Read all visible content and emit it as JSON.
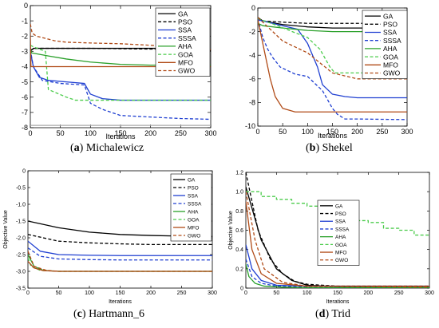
{
  "captions": [
    {
      "letter": "a",
      "name": "Michalewicz"
    },
    {
      "letter": "b",
      "name": "Shekel"
    },
    {
      "letter": "c",
      "name": "Hartmann_6"
    },
    {
      "letter": "d",
      "name": "Trid"
    }
  ],
  "chart_data": [
    {
      "type": "line",
      "title": "",
      "xlabel": "Iterations",
      "ylabel": "",
      "xlim": [
        0,
        300
      ],
      "ylim": [
        -8,
        0
      ],
      "xticks": [
        0,
        50,
        100,
        150,
        200,
        250,
        300
      ],
      "xtick_labels": [
        "0",
        "50",
        "100",
        "150",
        "200",
        "250",
        "300"
      ],
      "yticks": [
        0,
        -1,
        -2,
        -3,
        -4,
        -5,
        -6,
        -7,
        -8
      ],
      "ytick_labels": [
        "0",
        "-1",
        "-2",
        "-3",
        "-4",
        "-5",
        "-6",
        "-7",
        "-8"
      ],
      "grid": false,
      "legend": "top-right",
      "series": [
        {
          "name": "GA",
          "color": "#000000",
          "dash": "solid",
          "x": [
            0,
            5,
            50,
            100,
            150,
            200,
            250,
            300
          ],
          "y": [
            -3.0,
            -2.8,
            -2.8,
            -2.8,
            -2.8,
            -2.8,
            -2.8,
            -2.95
          ]
        },
        {
          "name": "PSO",
          "color": "#000000",
          "dash": "dashed",
          "x": [
            0,
            10,
            50,
            100,
            200,
            300
          ],
          "y": [
            -2.9,
            -2.8,
            -2.8,
            -2.8,
            -2.85,
            -2.85
          ]
        },
        {
          "name": "SSA",
          "color": "#1f3fd1",
          "dash": "solid",
          "x": [
            0,
            5,
            15,
            30,
            60,
            90,
            100,
            120,
            150,
            200,
            300
          ],
          "y": [
            -3.0,
            -4.0,
            -4.7,
            -4.9,
            -5.0,
            -5.1,
            -5.8,
            -6.1,
            -6.2,
            -6.2,
            -6.2
          ]
        },
        {
          "name": "SSSA",
          "color": "#1f3fd1",
          "dash": "dashed",
          "x": [
            0,
            5,
            20,
            50,
            90,
            100,
            120,
            150,
            200,
            250,
            300
          ],
          "y": [
            -2.9,
            -4.0,
            -4.9,
            -5.1,
            -5.2,
            -6.4,
            -6.8,
            -7.2,
            -7.3,
            -7.4,
            -7.45
          ]
        },
        {
          "name": "AHA",
          "color": "#2aa02a",
          "dash": "solid",
          "x": [
            0,
            2,
            30,
            60,
            100,
            150,
            200,
            300
          ],
          "y": [
            -2.8,
            -3.1,
            -3.3,
            -3.5,
            -3.7,
            -3.85,
            -3.9,
            -3.9
          ]
        },
        {
          "name": "GOA",
          "color": "#4ccc4c",
          "dash": "dashed",
          "x": [
            0,
            5,
            25,
            30,
            60,
            75,
            300
          ],
          "y": [
            -2.6,
            -2.7,
            -3.0,
            -5.5,
            -6.0,
            -6.2,
            -6.2
          ]
        },
        {
          "name": "MFO",
          "color": "#b04a16",
          "dash": "solid",
          "x": [
            0,
            1,
            40,
            90,
            150,
            200,
            300
          ],
          "y": [
            -1.8,
            -4.0,
            -4.0,
            -4.0,
            -4.0,
            -4.0,
            -4.0
          ]
        },
        {
          "name": "GWO",
          "color": "#b04a16",
          "dash": "dashed",
          "x": [
            0,
            3,
            10,
            40,
            60,
            100,
            150,
            200,
            250,
            300
          ],
          "y": [
            -1.2,
            -1.8,
            -2.0,
            -2.3,
            -2.4,
            -2.45,
            -2.5,
            -2.6,
            -2.7,
            -2.9
          ]
        },
        {
          "name": "",
          "color": "#aaaaaa",
          "dash": "solid",
          "x": [
            0,
            300
          ],
          "y": [
            -7.85,
            -7.85
          ]
        }
      ]
    },
    {
      "type": "line",
      "title": "",
      "xlabel": "Iterations",
      "ylabel": "",
      "xlim": [
        0,
        300
      ],
      "ylim": [
        -10,
        0
      ],
      "xticks": [
        0,
        50,
        100,
        150,
        200,
        250,
        300
      ],
      "xtick_labels": [
        "0",
        "50",
        "100",
        "150",
        "200",
        "250",
        "300"
      ],
      "yticks": [
        0,
        -2,
        -4,
        -6,
        -8,
        -10
      ],
      "ytick_labels": [
        "0",
        "-2",
        "-4",
        "-6",
        "-8",
        "-10"
      ],
      "grid": false,
      "legend": "top-right",
      "series": [
        {
          "name": "GA",
          "color": "#000000",
          "dash": "solid",
          "x": [
            0,
            10,
            50,
            100,
            150,
            300
          ],
          "y": [
            -0.8,
            -1.1,
            -1.4,
            -1.6,
            -1.7,
            -1.7
          ]
        },
        {
          "name": "PSO",
          "color": "#000000",
          "dash": "dashed",
          "x": [
            0,
            10,
            50,
            100,
            300
          ],
          "y": [
            -0.9,
            -1.1,
            -1.2,
            -1.3,
            -1.3
          ]
        },
        {
          "name": "SSA",
          "color": "#1f3fd1",
          "dash": "solid",
          "x": [
            0,
            50,
            80,
            100,
            120,
            130,
            150,
            175,
            200,
            250,
            300
          ],
          "y": [
            -1.0,
            -1.5,
            -1.8,
            -3.0,
            -5.0,
            -6.5,
            -7.3,
            -7.5,
            -7.6,
            -7.6,
            -7.6
          ]
        },
        {
          "name": "SSSA",
          "color": "#1f3fd1",
          "dash": "dashed",
          "x": [
            0,
            10,
            20,
            30,
            45,
            75,
            100,
            130,
            150,
            160,
            175,
            200,
            300
          ],
          "y": [
            -0.9,
            -2.5,
            -3.5,
            -4.2,
            -5.0,
            -5.6,
            -5.8,
            -7.0,
            -8.5,
            -9.0,
            -9.4,
            -9.4,
            -9.45
          ]
        },
        {
          "name": "AHA",
          "color": "#2aa02a",
          "dash": "solid",
          "x": [
            0,
            10,
            50,
            100,
            150,
            200,
            300
          ],
          "y": [
            -1.3,
            -1.5,
            -1.7,
            -1.9,
            -2.0,
            -2.0,
            -2.0
          ]
        },
        {
          "name": "GOA",
          "color": "#4ccc4c",
          "dash": "dashed",
          "x": [
            0,
            40,
            75,
            100,
            125,
            145,
            155,
            300
          ],
          "y": [
            -0.9,
            -1.5,
            -2.1,
            -2.5,
            -3.5,
            -5.0,
            -5.5,
            -5.5
          ]
        },
        {
          "name": "MFO",
          "color": "#b04a16",
          "dash": "solid",
          "x": [
            0,
            5,
            15,
            25,
            35,
            50,
            75,
            300
          ],
          "y": [
            -1.0,
            -2.0,
            -4.0,
            -6.0,
            -7.5,
            -8.5,
            -8.8,
            -8.8
          ]
        },
        {
          "name": "GWO",
          "color": "#b04a16",
          "dash": "dashed",
          "x": [
            0,
            25,
            50,
            100,
            150,
            200,
            300
          ],
          "y": [
            -0.8,
            -1.8,
            -2.8,
            -3.8,
            -5.5,
            -6.0,
            -6.0
          ]
        }
      ]
    },
    {
      "type": "line",
      "title": "",
      "xlabel": "Iterations",
      "ylabel": "Objective Value",
      "xlim": [
        0,
        300
      ],
      "ylim": [
        -3.5,
        0
      ],
      "xticks": [
        0,
        50,
        100,
        150,
        200,
        250,
        300
      ],
      "xtick_labels": [
        "0",
        "50",
        "100",
        "150",
        "200",
        "250",
        "300"
      ],
      "yticks": [
        0,
        -0.5,
        -1,
        -1.5,
        -2,
        -2.5,
        -3,
        -3.5
      ],
      "ytick_labels": [
        "0",
        "-0.5",
        "-1.0",
        "-1.5",
        "-2.0",
        "-2.5",
        "-3.0",
        "-3.5"
      ],
      "grid": false,
      "legend": "top-right",
      "series": [
        {
          "name": "GA",
          "color": "#000000",
          "dash": "solid",
          "x": [
            0,
            50,
            100,
            150,
            200,
            250,
            300
          ],
          "y": [
            -1.5,
            -1.7,
            -1.83,
            -1.9,
            -1.93,
            -1.95,
            -1.96
          ]
        },
        {
          "name": "PSO",
          "color": "#000000",
          "dash": "dashed",
          "x": [
            0,
            50,
            100,
            150,
            200,
            300
          ],
          "y": [
            -1.9,
            -2.1,
            -2.15,
            -2.18,
            -2.2,
            -2.2
          ]
        },
        {
          "name": "SSA",
          "color": "#1f3fd1",
          "dash": "solid",
          "x": [
            0,
            20,
            50,
            100,
            150,
            300
          ],
          "y": [
            -2.1,
            -2.4,
            -2.5,
            -2.52,
            -2.53,
            -2.53
          ]
        },
        {
          "name": "SSSA",
          "color": "#1f3fd1",
          "dash": "dashed",
          "x": [
            0,
            20,
            50,
            100,
            150,
            300
          ],
          "y": [
            -2.3,
            -2.55,
            -2.63,
            -2.65,
            -2.66,
            -2.66
          ]
        },
        {
          "name": "AHA",
          "color": "#2aa02a",
          "dash": "solid",
          "x": [
            0,
            10,
            25,
            50,
            100,
            300
          ],
          "y": [
            -2.5,
            -2.85,
            -2.97,
            -3.0,
            -3.0,
            -3.0
          ]
        },
        {
          "name": "GOA",
          "color": "#4ccc4c",
          "dash": "dashed",
          "x": [
            0,
            5,
            20,
            50,
            300
          ],
          "y": [
            -2.6,
            -2.85,
            -2.97,
            -3.0,
            -3.0
          ]
        },
        {
          "name": "MFO",
          "color": "#b04a16",
          "dash": "solid",
          "x": [
            0,
            10,
            25,
            50,
            300
          ],
          "y": [
            -2.7,
            -2.9,
            -2.98,
            -3.0,
            -3.0
          ]
        },
        {
          "name": "GWO",
          "color": "#b04a16",
          "dash": "dashed",
          "x": [
            0,
            10,
            30,
            50,
            300
          ],
          "y": [
            -2.4,
            -2.85,
            -2.97,
            -3.0,
            -3.0
          ]
        }
      ]
    },
    {
      "type": "line",
      "title": "",
      "xlabel": "Iterations",
      "ylabel": "Objective Value",
      "xlim": [
        0,
        300
      ],
      "ylim": [
        0,
        1.2
      ],
      "xticks": [
        0,
        50,
        100,
        150,
        200,
        250,
        300
      ],
      "xtick_labels": [
        "0",
        "50",
        "100",
        "150",
        "200",
        "250",
        "300"
      ],
      "yticks": [
        0,
        0.2,
        0.4,
        0.6,
        0.8,
        1.0,
        1.2
      ],
      "ytick_labels": [
        "0",
        "0.2",
        "0.4",
        "0.6",
        "0.8",
        "1.0",
        "1.2"
      ],
      "grid": false,
      "legend": "center-right",
      "series": [
        {
          "name": "GA",
          "color": "#000000",
          "dash": "solid",
          "x": [
            0,
            25,
            50,
            75,
            100,
            150,
            200,
            300
          ],
          "y": [
            1.05,
            0.5,
            0.2,
            0.08,
            0.03,
            0.015,
            0.01,
            0.01
          ]
        },
        {
          "name": "PSO",
          "color": "#000000",
          "dash": "dashed",
          "x": [
            0,
            20,
            40,
            60,
            80,
            100,
            150,
            300
          ],
          "y": [
            1.2,
            0.6,
            0.3,
            0.15,
            0.07,
            0.04,
            0.02,
            0.02
          ]
        },
        {
          "name": "SSA",
          "color": "#1f3fd1",
          "dash": "solid",
          "x": [
            0,
            10,
            25,
            50,
            100,
            300
          ],
          "y": [
            0.45,
            0.2,
            0.08,
            0.03,
            0.02,
            0.02
          ]
        },
        {
          "name": "SSSA",
          "color": "#1f3fd1",
          "dash": "dashed",
          "x": [
            0,
            10,
            25,
            50,
            100,
            300
          ],
          "y": [
            0.3,
            0.12,
            0.05,
            0.02,
            0.01,
            0.01
          ]
        },
        {
          "name": "AHA",
          "color": "#2aa02a",
          "dash": "solid",
          "x": [
            0,
            5,
            15,
            30,
            60,
            100,
            300
          ],
          "y": [
            0.25,
            0.12,
            0.05,
            0.02,
            0.01,
            0.005,
            0.005
          ]
        },
        {
          "name": "GOA",
          "color": "#4ccc4c",
          "dash": "dashed",
          "x": [
            0,
            25,
            25,
            50,
            50,
            75,
            75,
            100,
            100,
            125,
            125,
            150,
            150,
            175,
            175,
            200,
            200,
            225,
            225,
            250,
            250,
            275,
            275,
            300
          ],
          "y": [
            1.0,
            1.0,
            0.95,
            0.95,
            0.92,
            0.92,
            0.88,
            0.88,
            0.85,
            0.85,
            0.8,
            0.8,
            0.75,
            0.75,
            0.7,
            0.7,
            0.68,
            0.68,
            0.62,
            0.62,
            0.6,
            0.6,
            0.55,
            0.55
          ]
        },
        {
          "name": "MFO",
          "color": "#b04a16",
          "dash": "solid",
          "x": [
            0,
            10,
            25,
            50,
            100,
            300
          ],
          "y": [
            0.9,
            0.4,
            0.15,
            0.05,
            0.02,
            0.02
          ]
        },
        {
          "name": "GWO",
          "color": "#b04a16",
          "dash": "dashed",
          "x": [
            0,
            15,
            30,
            60,
            100,
            300
          ],
          "y": [
            1.0,
            0.5,
            0.2,
            0.06,
            0.02,
            0.01
          ]
        }
      ]
    }
  ]
}
